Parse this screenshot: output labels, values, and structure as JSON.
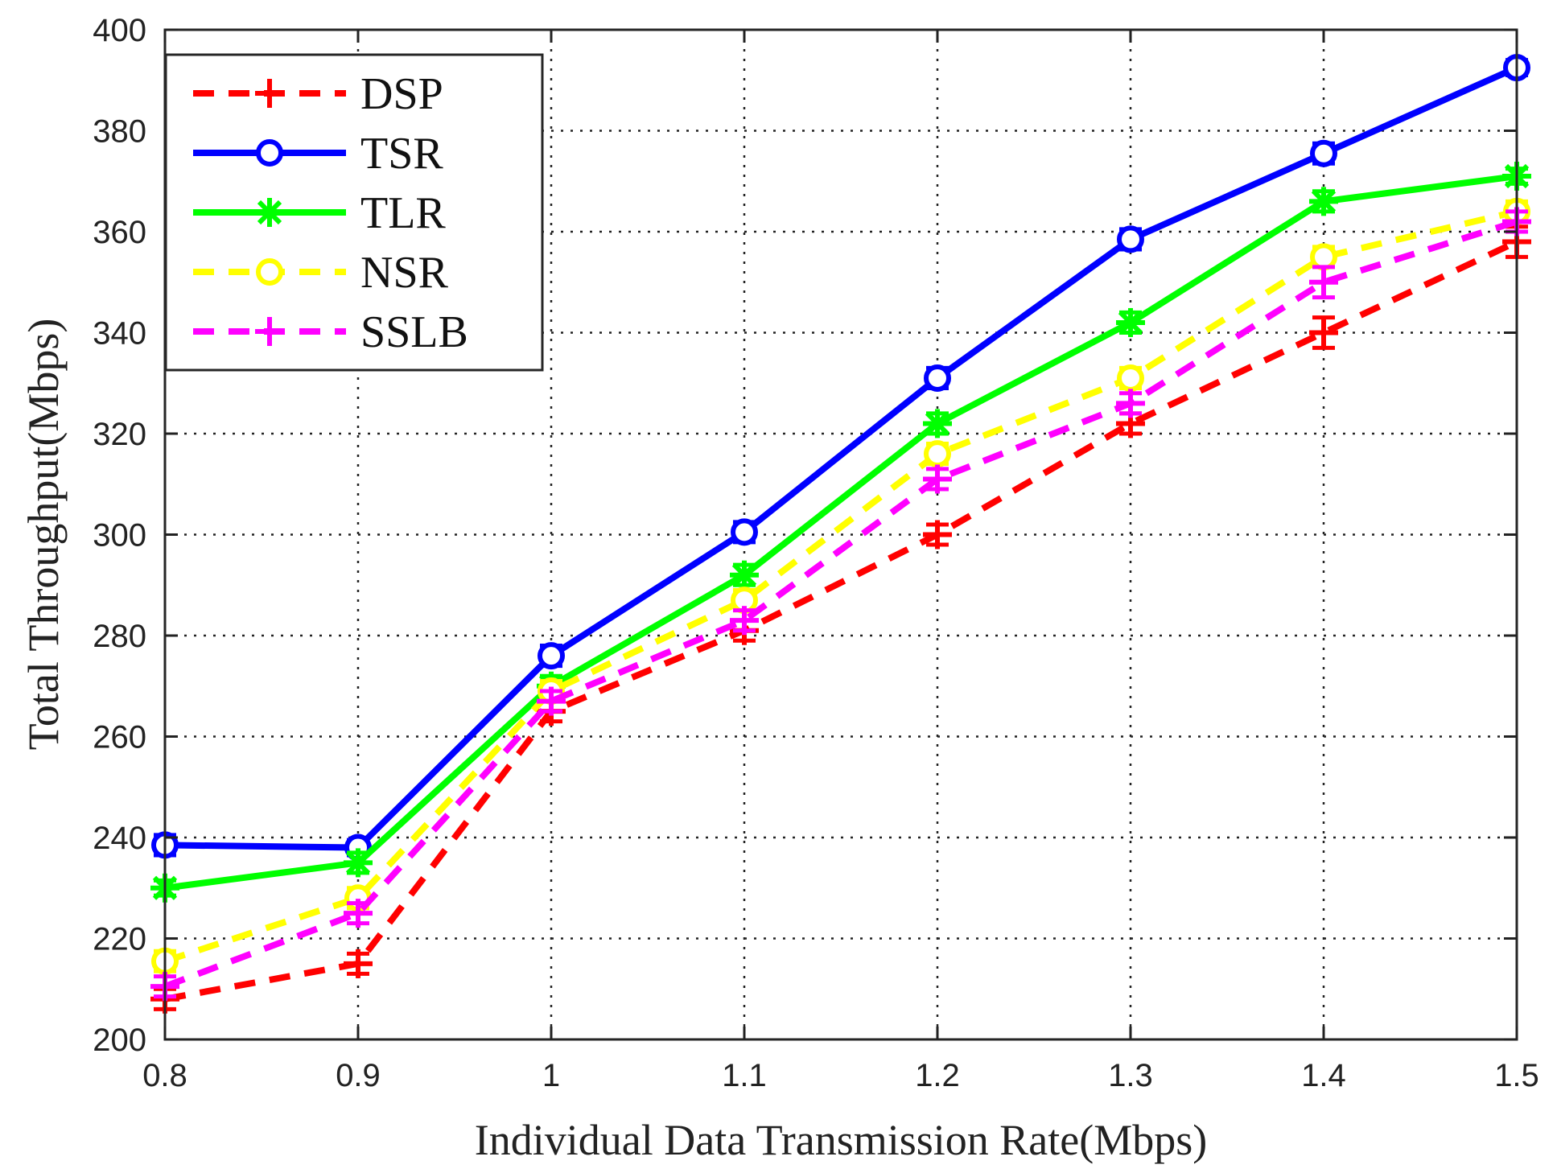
{
  "chart_data": {
    "type": "line",
    "title": "",
    "xlabel": "Individual Data Transmission Rate(Mbps)",
    "ylabel": "Total Throughput(Mbps)",
    "x": [
      0.8,
      0.9,
      1.0,
      1.1,
      1.2,
      1.3,
      1.4,
      1.5
    ],
    "x_tick_labels": [
      "0.8",
      "0.9",
      "1",
      "1.1",
      "1.2",
      "1.3",
      "1.4",
      "1.5"
    ],
    "y_tick_labels": [
      "200",
      "220",
      "240",
      "260",
      "280",
      "300",
      "320",
      "340",
      "360",
      "380",
      "400"
    ],
    "xlim": [
      0.8,
      1.5
    ],
    "ylim": [
      200,
      400
    ],
    "grid": true,
    "legend_position": "top-left",
    "series": [
      {
        "name": "DSP",
        "color": "#ff0000",
        "dash": "dashed",
        "marker": "plus",
        "values": [
          208,
          215,
          265,
          281,
          300,
          322,
          340,
          358
        ],
        "error": [
          2,
          2,
          2,
          2,
          2,
          2,
          3,
          3
        ]
      },
      {
        "name": "TSR",
        "color": "#0000ff",
        "dash": "solid",
        "marker": "circle",
        "values": [
          238.5,
          238,
          276,
          300.5,
          331,
          358.5,
          375.5,
          392.5
        ],
        "error": [
          2,
          1.5,
          2,
          2,
          2,
          2,
          2,
          1.5
        ]
      },
      {
        "name": "TLR",
        "color": "#00ff00",
        "dash": "solid",
        "marker": "asterisk",
        "values": [
          230,
          235,
          270,
          292,
          322,
          342,
          366,
          371
        ],
        "error": [
          1.5,
          2,
          2,
          2,
          2,
          2,
          2,
          1.5
        ]
      },
      {
        "name": "NSR",
        "color": "#ffff00",
        "dash": "dashed",
        "marker": "circle",
        "values": [
          215.5,
          228,
          269,
          287,
          316,
          331,
          355,
          364
        ],
        "error": [
          2,
          2,
          2,
          2,
          2,
          2,
          2,
          2
        ]
      },
      {
        "name": "SSLB",
        "color": "#ff00ff",
        "dash": "dashed",
        "marker": "plus",
        "values": [
          210.5,
          225,
          267,
          283,
          311,
          326,
          350,
          362
        ],
        "error": [
          2,
          2,
          2,
          2,
          2,
          2,
          3,
          2
        ]
      }
    ]
  }
}
